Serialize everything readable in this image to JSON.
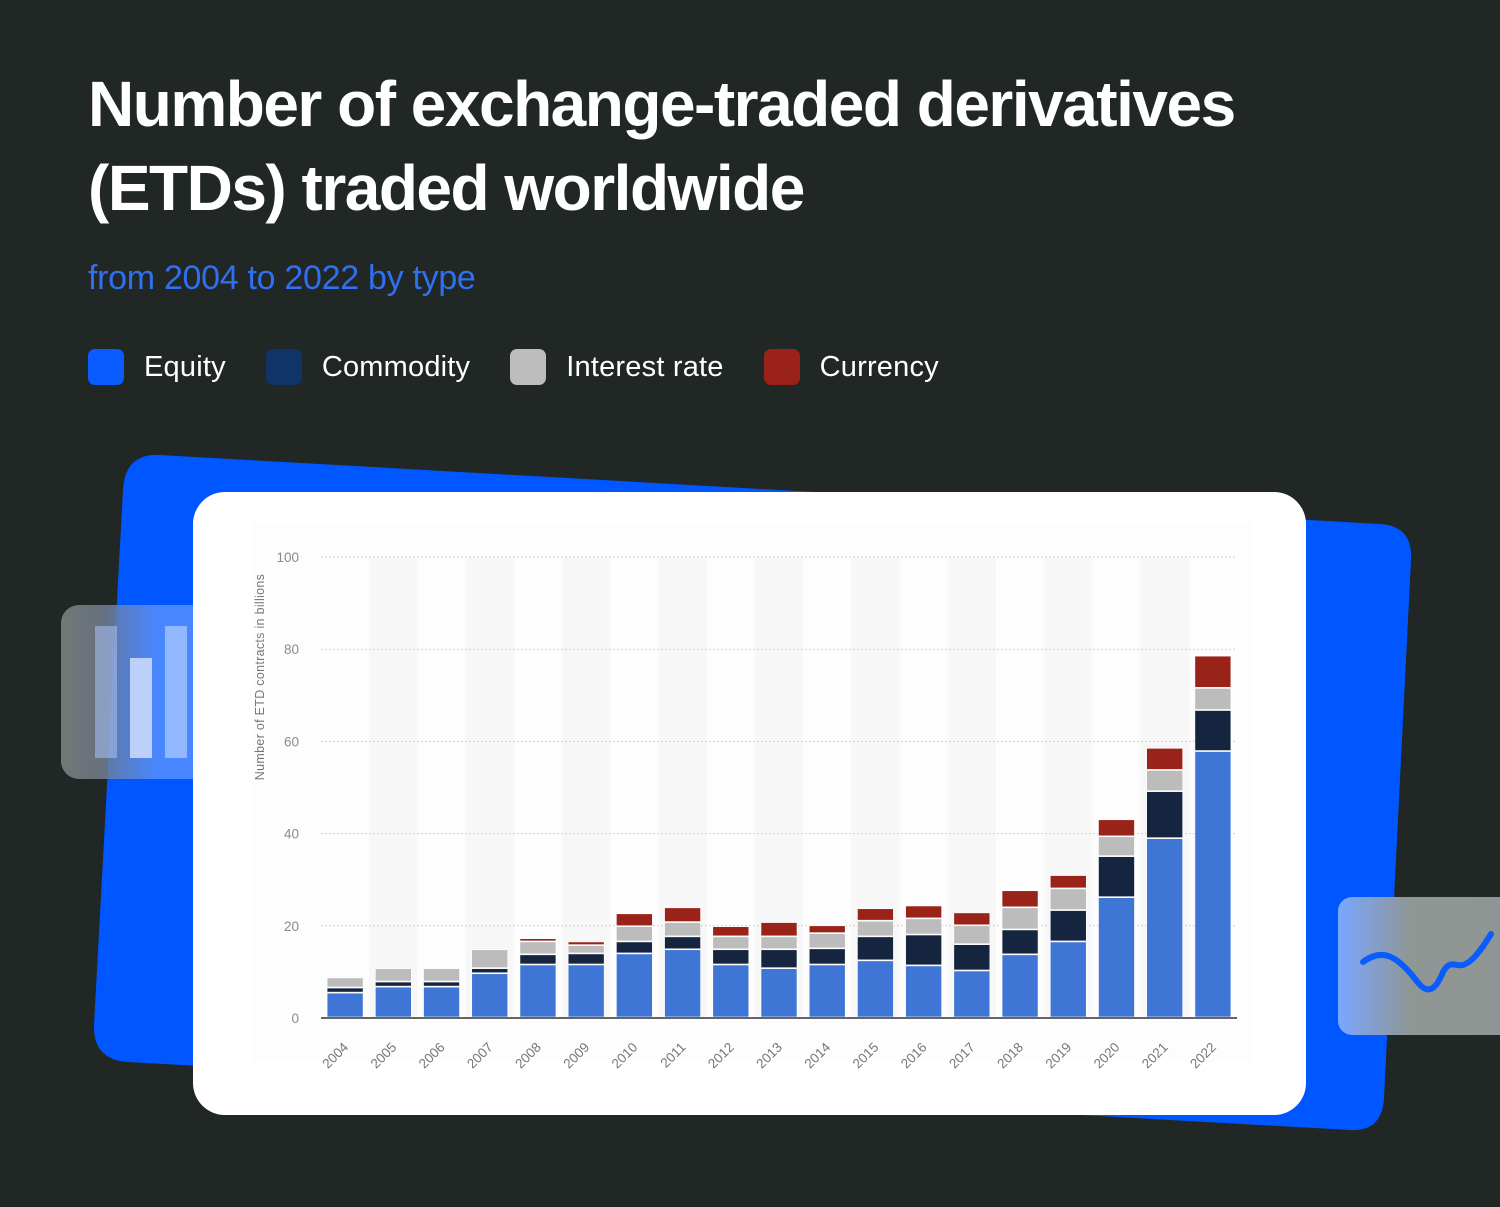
{
  "header": {
    "title": "Number of exchange-traded derivatives (ETDs) traded worldwide",
    "subtitle": "from 2004 to 2022 by type"
  },
  "legend": [
    {
      "label": "Equity",
      "color": "#0a5cff"
    },
    {
      "label": "Commodity",
      "color": "#0e3468"
    },
    {
      "label": "Interest rate",
      "color": "#bdbdbd"
    },
    {
      "label": "Currency",
      "color": "#9b2219"
    }
  ],
  "colors": {
    "background": "#202725",
    "backdrop_blue": "#0057ff",
    "equity_bar": "#3f76d6",
    "commodity_bar": "#15253f",
    "interest_bar": "#bcbcbc",
    "currency_bar": "#992219"
  },
  "decor": {
    "left_badge_icon": "bar-chart-icon",
    "right_badge_icon": "wave-line-icon"
  },
  "chart_data": {
    "type": "bar",
    "stacked": true,
    "title": "Number of exchange-traded derivatives (ETDs) traded worldwide",
    "subtitle": "from 2004 to 2022 by type",
    "xlabel": "",
    "ylabel": "Number of ETD contracts in billions",
    "ylim": [
      0,
      100
    ],
    "yticks": [
      0,
      20,
      40,
      60,
      80,
      100
    ],
    "grid": true,
    "legend_position": "top",
    "categories": [
      "2004",
      "2005",
      "2006",
      "2007",
      "2008",
      "2009",
      "2010",
      "2011",
      "2012",
      "2013",
      "2014",
      "2015",
      "2016",
      "2017",
      "2018",
      "2019",
      "2020",
      "2021",
      "2022"
    ],
    "series": [
      {
        "name": "Equity",
        "values": [
          5.4,
          6.7,
          6.7,
          9.6,
          11.5,
          11.5,
          13.9,
          14.8,
          11.5,
          10.7,
          11.5,
          12.4,
          11.3,
          10.2,
          13.7,
          16.5,
          26.1,
          38.9,
          57.8
        ]
      },
      {
        "name": "Commodity",
        "values": [
          1.1,
          1.1,
          1.1,
          1.1,
          2.2,
          2.4,
          2.6,
          2.8,
          3.3,
          4.1,
          3.5,
          5.2,
          6.7,
          5.7,
          5.4,
          6.8,
          8.9,
          10.2,
          8.9
        ]
      },
      {
        "name": "Interest rate",
        "values": [
          2.2,
          2.9,
          2.9,
          4.1,
          2.8,
          1.8,
          3.3,
          3.1,
          2.8,
          2.8,
          3.3,
          3.4,
          3.5,
          4.1,
          4.8,
          4.7,
          4.3,
          4.6,
          4.8
        ]
      },
      {
        "name": "Currency",
        "values": [
          0.0,
          0.0,
          0.0,
          0.0,
          0.7,
          0.8,
          2.8,
          3.2,
          2.2,
          3.1,
          1.7,
          2.7,
          2.8,
          2.8,
          3.7,
          2.9,
          3.7,
          4.8,
          7.0
        ]
      }
    ]
  }
}
